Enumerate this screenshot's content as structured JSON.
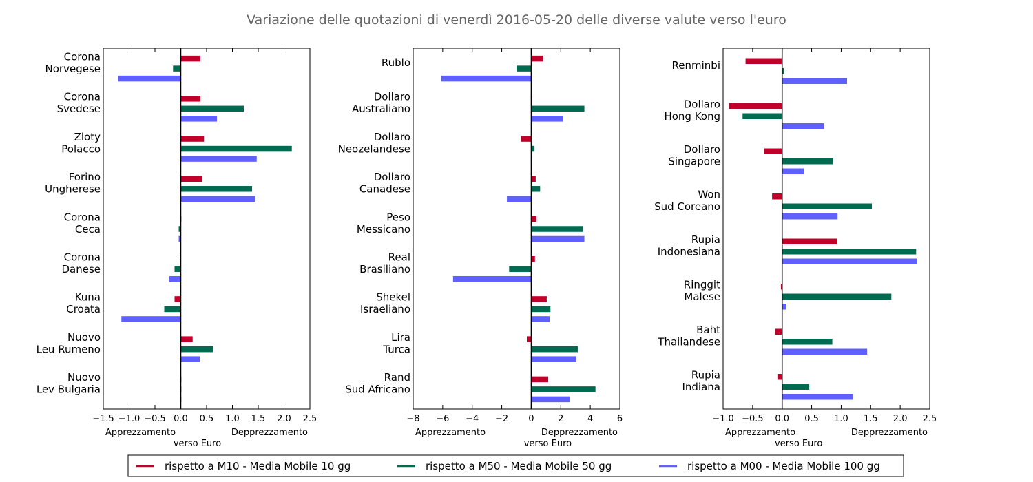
{
  "chart_data": {
    "title": "Variazione delle quotazioni di venerdì 2016-05-20 delle diverse valute verso l'euro",
    "type": "bar",
    "orientation": "horizontal",
    "left_label": "Apprezzamento",
    "right_label": "Depprezzamento",
    "center_label": "verso Euro",
    "series": [
      {
        "name": "rispetto a M10 - Media Mobile 10 gg",
        "color": "#c0002a"
      },
      {
        "name": "rispetto a M50 - Media Mobile 50 gg",
        "color": "#006b50"
      },
      {
        "name": "rispetto a M00 - Media Mobile 100 gg",
        "color": "#6060ff"
      }
    ],
    "panels": [
      {
        "xlim": [
          -1.5,
          2.5
        ],
        "ticks": [
          "−1.5",
          "−1.0",
          "−0.5",
          "0.0",
          "0.5",
          "1.0",
          "1.5",
          "2.0",
          "2.5"
        ],
        "tick_values": [
          -1.5,
          -1.0,
          -0.5,
          0.0,
          0.5,
          1.0,
          1.5,
          2.0,
          2.5
        ],
        "categories": [
          {
            "name": [
              "Corona",
              "Norvegese"
            ],
            "values": [
              0.38,
              -0.15,
              -1.22
            ]
          },
          {
            "name": [
              "Corona",
              "Svedese"
            ],
            "values": [
              0.38,
              1.22,
              0.7
            ]
          },
          {
            "name": [
              "Zloty",
              "Polacco"
            ],
            "values": [
              0.45,
              2.15,
              1.47
            ]
          },
          {
            "name": [
              "Forino",
              "Ungherese"
            ],
            "values": [
              0.41,
              1.38,
              1.44
            ]
          },
          {
            "name": [
              "Corona",
              "Ceca"
            ],
            "values": [
              0.0,
              -0.04,
              -0.04
            ]
          },
          {
            "name": [
              "Corona",
              "Danese"
            ],
            "values": [
              -0.02,
              -0.12,
              -0.22
            ]
          },
          {
            "name": [
              "Kuna",
              "Croata"
            ],
            "values": [
              -0.12,
              -0.32,
              -1.15
            ]
          },
          {
            "name": [
              "Nuovo",
              "Leu Rumeno"
            ],
            "values": [
              0.23,
              0.62,
              0.37
            ]
          },
          {
            "name": [
              "Nuovo",
              "Lev Bulgaria"
            ],
            "values": [
              0.0,
              0.0,
              0.0
            ]
          }
        ]
      },
      {
        "xlim": [
          -8,
          6
        ],
        "ticks": [
          "−8",
          "−6",
          "−4",
          "−2",
          "0",
          "2",
          "4",
          "6"
        ],
        "tick_values": [
          -8,
          -6,
          -4,
          -2,
          0,
          2,
          4,
          6
        ],
        "categories": [
          {
            "name": [
              "Rublo"
            ],
            "values": [
              0.8,
              -1.0,
              -6.1
            ]
          },
          {
            "name": [
              "Dollaro",
              "Australiano"
            ],
            "values": [
              0.0,
              3.6,
              2.15
            ]
          },
          {
            "name": [
              "Dollaro",
              "Neozelandese"
            ],
            "values": [
              -0.7,
              0.22,
              0.0
            ]
          },
          {
            "name": [
              "Dollaro",
              "Canadese"
            ],
            "values": [
              0.3,
              0.6,
              -1.65
            ]
          },
          {
            "name": [
              "Peso",
              "Messicano"
            ],
            "values": [
              0.35,
              3.5,
              3.6
            ]
          },
          {
            "name": [
              "Real",
              "Brasiliano"
            ],
            "values": [
              0.25,
              -1.5,
              -5.3
            ]
          },
          {
            "name": [
              "Shekel",
              "Israeliano"
            ],
            "values": [
              1.05,
              1.3,
              1.25
            ]
          },
          {
            "name": [
              "Lira",
              "Turca"
            ],
            "values": [
              -0.3,
              3.15,
              3.05
            ]
          },
          {
            "name": [
              "Rand",
              "Sud Africano"
            ],
            "values": [
              1.15,
              4.35,
              2.6
            ]
          }
        ]
      },
      {
        "xlim": [
          -1.0,
          2.5
        ],
        "ticks": [
          "−1.0",
          "−0.5",
          "0.0",
          "0.5",
          "1.0",
          "1.5",
          "2.0",
          "2.5"
        ],
        "tick_values": [
          -1.0,
          -0.5,
          0.0,
          0.5,
          1.0,
          1.5,
          2.0,
          2.5
        ],
        "categories": [
          {
            "name": [
              "Renminbi"
            ],
            "values": [
              -0.62,
              0.03,
              1.1
            ]
          },
          {
            "name": [
              "Dollaro",
              "Hong Kong"
            ],
            "values": [
              -0.9,
              -0.67,
              0.71
            ]
          },
          {
            "name": [
              "Dollaro",
              "Singapore"
            ],
            "values": [
              -0.3,
              0.86,
              0.37
            ]
          },
          {
            "name": [
              "Won",
              "Sud Coreano"
            ],
            "values": [
              -0.17,
              1.52,
              0.94
            ]
          },
          {
            "name": [
              "Rupia",
              "Indonesiana"
            ],
            "values": [
              0.93,
              2.27,
              2.28
            ]
          },
          {
            "name": [
              "Ringgit",
              "Malese"
            ],
            "values": [
              -0.02,
              1.85,
              0.07
            ]
          },
          {
            "name": [
              "Baht",
              "Thailandese"
            ],
            "values": [
              -0.12,
              0.85,
              1.44
            ]
          },
          {
            "name": [
              "Rupia",
              "Indiana"
            ],
            "values": [
              -0.08,
              0.46,
              1.2
            ]
          }
        ]
      }
    ]
  }
}
